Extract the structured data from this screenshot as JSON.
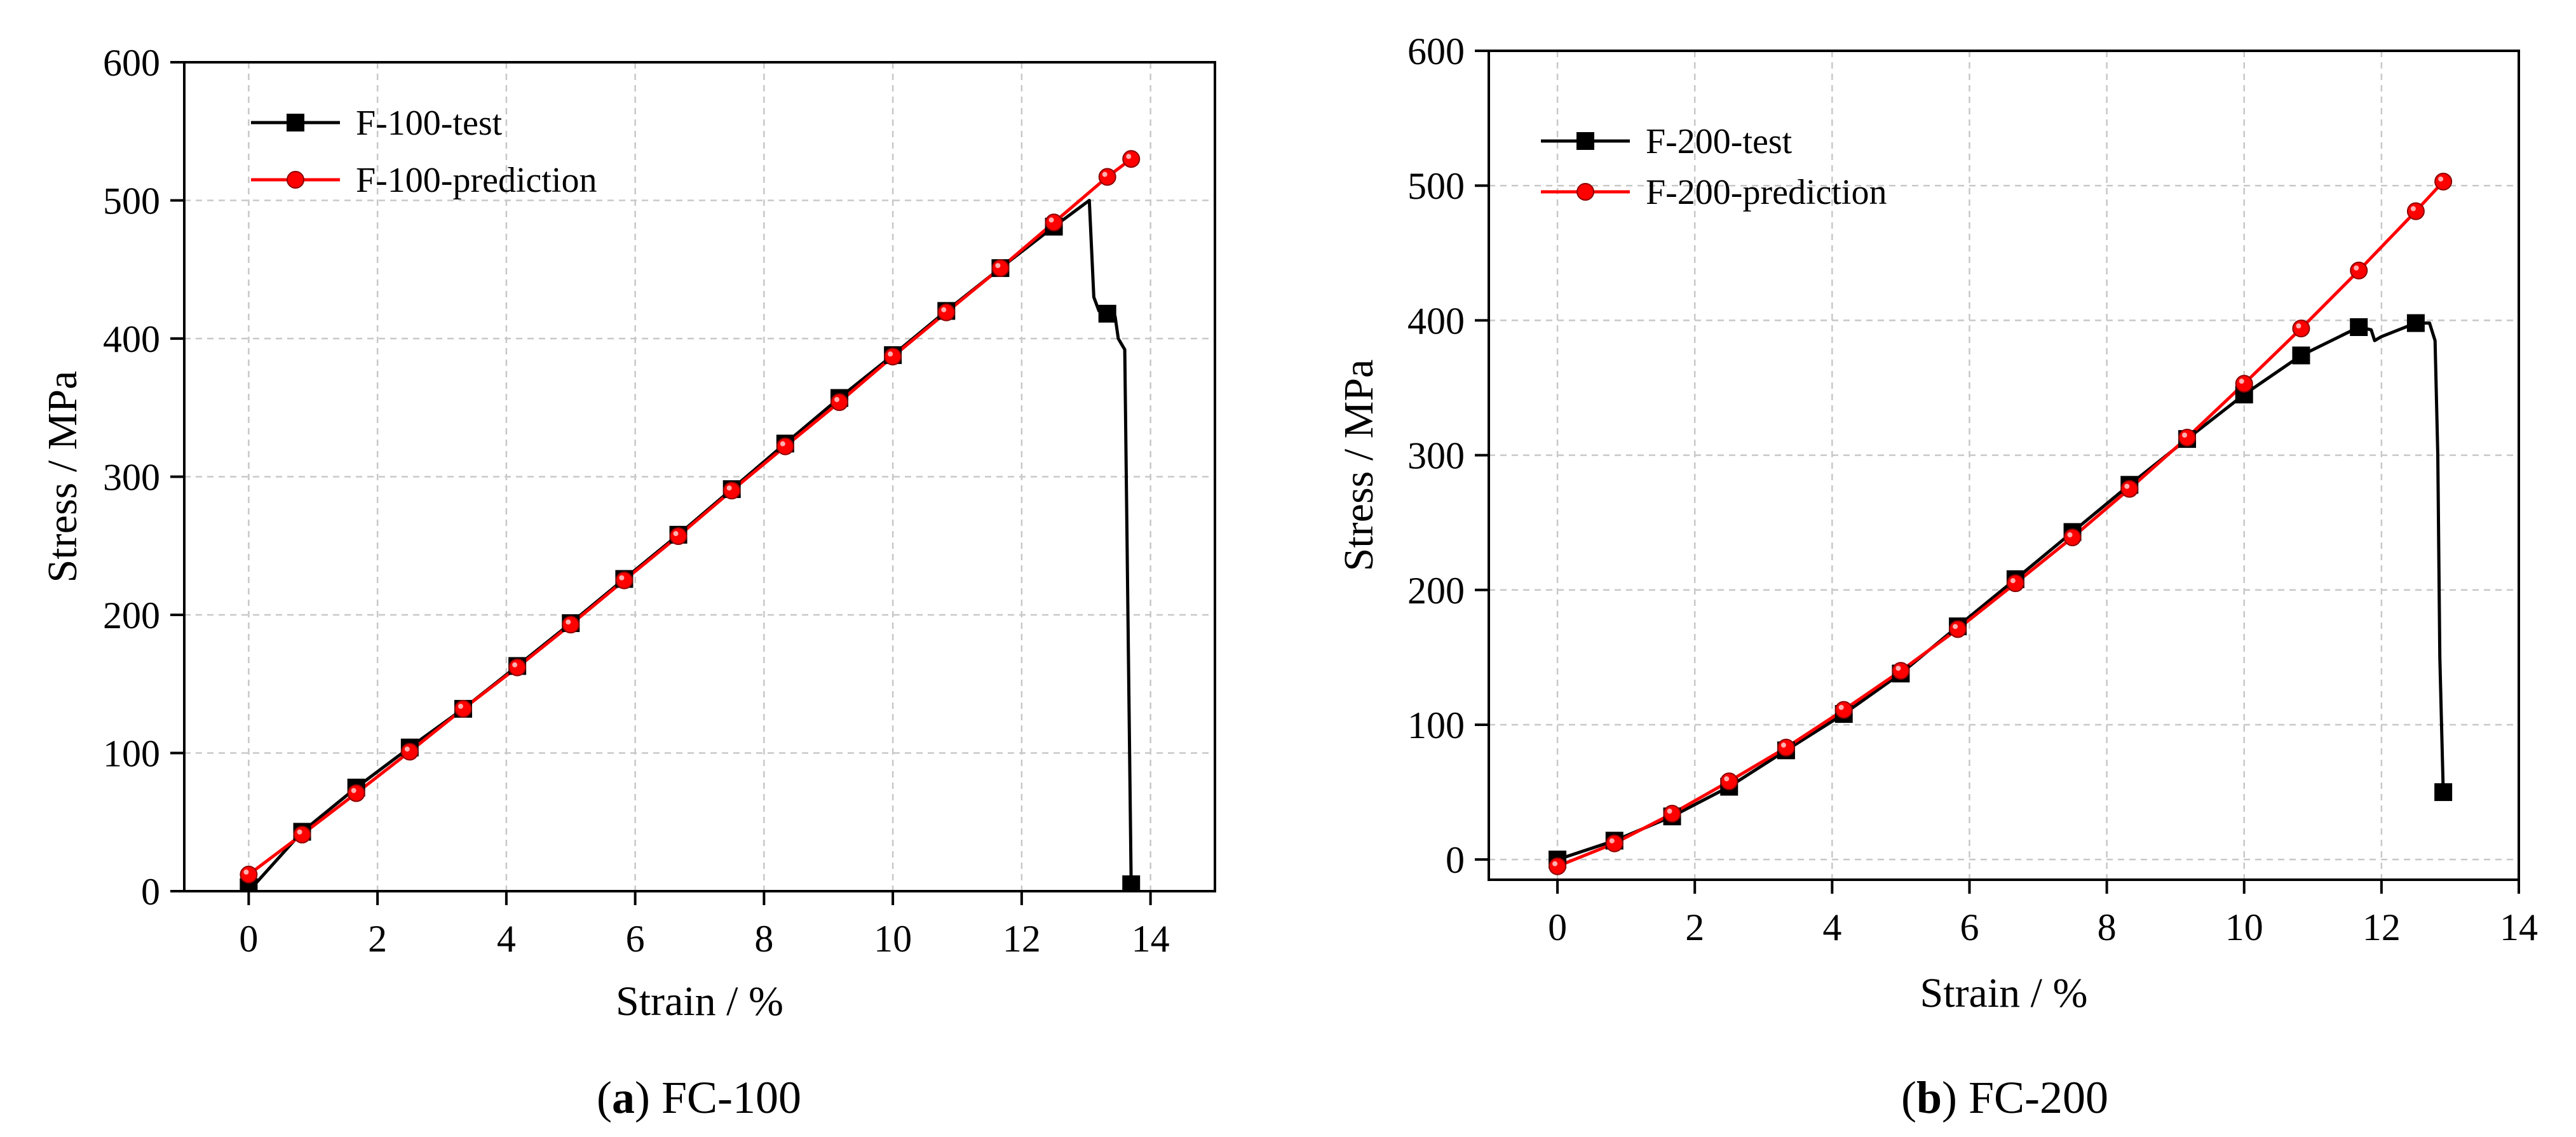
{
  "chart_data": [
    {
      "type": "line",
      "panel": "a",
      "caption": {
        "letter": "a",
        "text": "FC-100"
      },
      "xlabel": "Strain / %",
      "ylabel": "Stress / MPa",
      "xlim": [
        -1,
        15
      ],
      "ylim": [
        0,
        600
      ],
      "xticks": [
        0,
        2,
        4,
        6,
        8,
        10,
        12,
        14
      ],
      "yticks": [
        0,
        100,
        200,
        300,
        400,
        500,
        600
      ],
      "grid": true,
      "legend_position": "top-left",
      "series": [
        {
          "name": "F-100-test",
          "color": "#000000",
          "marker": "square",
          "curve": [
            [
              0,
              0
            ],
            [
              0.83,
              43
            ],
            [
              1.67,
              75
            ],
            [
              2.5,
              104
            ],
            [
              3.33,
              132
            ],
            [
              4.17,
              163
            ],
            [
              5.0,
              194
            ],
            [
              5.83,
              226
            ],
            [
              6.67,
              258
            ],
            [
              7.5,
              291
            ],
            [
              8.33,
              324
            ],
            [
              9.17,
              357
            ],
            [
              10.0,
              388
            ],
            [
              10.83,
              420
            ],
            [
              11.67,
              451
            ],
            [
              12.5,
              481
            ],
            [
              13.05,
              500
            ],
            [
              13.12,
              430
            ],
            [
              13.2,
              420
            ],
            [
              13.3,
              418
            ],
            [
              13.45,
              416
            ],
            [
              13.5,
              400
            ],
            [
              13.6,
              392
            ],
            [
              13.65,
              200
            ],
            [
              13.7,
              5
            ]
          ],
          "markers": [
            [
              0,
              3
            ],
            [
              0.83,
              43
            ],
            [
              1.67,
              75
            ],
            [
              2.5,
              104
            ],
            [
              3.33,
              132
            ],
            [
              4.17,
              163
            ],
            [
              5.0,
              194
            ],
            [
              5.83,
              226
            ],
            [
              6.67,
              258
            ],
            [
              7.5,
              291
            ],
            [
              8.33,
              324
            ],
            [
              9.17,
              357
            ],
            [
              10.0,
              388
            ],
            [
              10.83,
              420
            ],
            [
              11.67,
              451
            ],
            [
              12.5,
              481
            ],
            [
              13.33,
              418
            ],
            [
              13.7,
              5
            ]
          ]
        },
        {
          "name": "F-100-prediction",
          "color": "#ff0000",
          "marker": "circle",
          "curve": [
            [
              0,
              12
            ],
            [
              0.83,
              41
            ],
            [
              1.67,
              71
            ],
            [
              2.5,
              101
            ],
            [
              3.33,
              132
            ],
            [
              4.17,
              162
            ],
            [
              5.0,
              193
            ],
            [
              5.83,
              225
            ],
            [
              6.67,
              257
            ],
            [
              7.5,
              290
            ],
            [
              8.33,
              322
            ],
            [
              9.17,
              354
            ],
            [
              10.0,
              387
            ],
            [
              10.83,
              419
            ],
            [
              11.67,
              451
            ],
            [
              12.5,
              484
            ],
            [
              13.33,
              517
            ],
            [
              13.7,
              530
            ]
          ],
          "markers": [
            [
              0,
              12
            ],
            [
              0.83,
              41
            ],
            [
              1.67,
              71
            ],
            [
              2.5,
              101
            ],
            [
              3.33,
              132
            ],
            [
              4.17,
              162
            ],
            [
              5.0,
              193
            ],
            [
              5.83,
              225
            ],
            [
              6.67,
              257
            ],
            [
              7.5,
              290
            ],
            [
              8.33,
              322
            ],
            [
              9.17,
              354
            ],
            [
              10.0,
              387
            ],
            [
              10.83,
              419
            ],
            [
              11.67,
              451
            ],
            [
              12.5,
              484
            ],
            [
              13.33,
              517
            ],
            [
              13.7,
              530
            ]
          ]
        }
      ]
    },
    {
      "type": "line",
      "panel": "b",
      "caption": {
        "letter": "b",
        "text": "FC-200"
      },
      "xlabel": "Strain / %",
      "ylabel": "Stress / MPa",
      "xlim": [
        -1,
        14
      ],
      "ylim": [
        -15,
        600
      ],
      "xticks": [
        0,
        2,
        4,
        6,
        8,
        10,
        12,
        14
      ],
      "yticks": [
        0,
        100,
        200,
        300,
        400,
        500,
        600
      ],
      "grid": true,
      "legend_position": "top-left",
      "series": [
        {
          "name": "F-200-test",
          "color": "#000000",
          "marker": "square",
          "curve": [
            [
              0,
              0
            ],
            [
              0.83,
              14
            ],
            [
              1.67,
              32
            ],
            [
              2.5,
              54
            ],
            [
              3.33,
              81
            ],
            [
              4.17,
              108
            ],
            [
              5.0,
              138
            ],
            [
              5.83,
              173
            ],
            [
              6.67,
              208
            ],
            [
              7.5,
              243
            ],
            [
              8.33,
              278
            ],
            [
              9.17,
              312
            ],
            [
              10.0,
              345
            ],
            [
              10.83,
              374
            ],
            [
              11.67,
              395
            ],
            [
              11.85,
              393
            ],
            [
              11.9,
              385
            ],
            [
              12.0,
              388
            ],
            [
              12.5,
              398
            ],
            [
              12.7,
              398
            ],
            [
              12.78,
              385
            ],
            [
              12.82,
              300
            ],
            [
              12.85,
              150
            ],
            [
              12.9,
              50
            ]
          ],
          "markers": [
            [
              0,
              0
            ],
            [
              0.83,
              14
            ],
            [
              1.67,
              32
            ],
            [
              2.5,
              54
            ],
            [
              3.33,
              81
            ],
            [
              4.17,
              108
            ],
            [
              5.0,
              138
            ],
            [
              5.83,
              173
            ],
            [
              6.67,
              208
            ],
            [
              7.5,
              243
            ],
            [
              8.33,
              278
            ],
            [
              9.17,
              312
            ],
            [
              10.0,
              345
            ],
            [
              10.83,
              374
            ],
            [
              11.67,
              395
            ],
            [
              12.5,
              398
            ],
            [
              12.9,
              50
            ]
          ]
        },
        {
          "name": "F-200-prediction",
          "color": "#ff0000",
          "marker": "circle",
          "curve": [
            [
              0,
              -5
            ],
            [
              0.83,
              12
            ],
            [
              1.67,
              34
            ],
            [
              2.5,
              58
            ],
            [
              3.33,
              83
            ],
            [
              4.17,
              111
            ],
            [
              5.0,
              140
            ],
            [
              5.83,
              171
            ],
            [
              6.67,
              205
            ],
            [
              7.5,
              239
            ],
            [
              8.33,
              275
            ],
            [
              9.17,
              313
            ],
            [
              10.0,
              353
            ],
            [
              10.83,
              394
            ],
            [
              11.67,
              437
            ],
            [
              12.5,
              481
            ],
            [
              12.9,
              503
            ]
          ],
          "markers": [
            [
              0,
              -5
            ],
            [
              0.83,
              12
            ],
            [
              1.67,
              34
            ],
            [
              2.5,
              58
            ],
            [
              3.33,
              83
            ],
            [
              4.17,
              111
            ],
            [
              5.0,
              140
            ],
            [
              5.83,
              171
            ],
            [
              6.67,
              205
            ],
            [
              7.5,
              239
            ],
            [
              8.33,
              275
            ],
            [
              9.17,
              313
            ],
            [
              10.0,
              353
            ],
            [
              10.83,
              394
            ],
            [
              11.67,
              437
            ],
            [
              12.5,
              481
            ],
            [
              12.9,
              503
            ]
          ]
        }
      ]
    }
  ]
}
